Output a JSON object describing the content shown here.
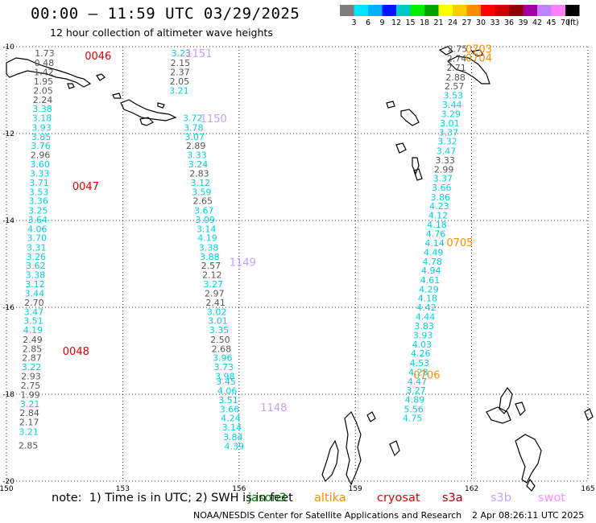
{
  "title": "00:00 – 11:59 UTC 03/29/2025",
  "subtitle": "12 hour collection of altimeter wave heights",
  "note": "note:  1) Time is in UTC; 2) SWH is in feet",
  "credit": "NOAA/NESDIS Center for Satellite Applications and Research",
  "generated": "2 Apr 08:26:11 UTC 2025",
  "colorbar": {
    "unit_label": "(ft)",
    "stops": [
      {
        "label": "3",
        "color": "#7d7d7d"
      },
      {
        "label": "6",
        "color": "#00e5ff"
      },
      {
        "label": "9",
        "color": "#00b2ff"
      },
      {
        "label": "12",
        "color": "#0014ff"
      },
      {
        "label": "15",
        "color": "#00c8c8"
      },
      {
        "label": "18",
        "color": "#00ee00"
      },
      {
        "label": "21",
        "color": "#00a000"
      },
      {
        "label": "24",
        "color": "#ffff00"
      },
      {
        "label": "27",
        "color": "#ffcc00"
      },
      {
        "label": "30",
        "color": "#ff8c00"
      },
      {
        "label": "33",
        "color": "#ff0000"
      },
      {
        "label": "36",
        "color": "#d00000"
      },
      {
        "label": "39",
        "color": "#900000"
      },
      {
        "label": "42",
        "color": "#a000a0"
      },
      {
        "label": "45",
        "color": "#c080ff"
      },
      {
        "label": "70",
        "color": "#ff80ff"
      },
      {
        "label": "",
        "color": "#000000"
      }
    ]
  },
  "satellites": [
    {
      "name": "jason3",
      "color": "#008000"
    },
    {
      "name": "altika",
      "color": "#ff8c00"
    },
    {
      "name": "cryosat",
      "color": "#e00000"
    },
    {
      "name": "s3a",
      "color": "#a00000"
    },
    {
      "name": "s3b",
      "color": "#c4a0ff"
    },
    {
      "name": "swot",
      "color": "#ff90ff"
    }
  ],
  "map": {
    "lon_range": [
      150,
      165
    ],
    "lat_range": [
      -20,
      -10
    ],
    "lon_ticks": [
      150,
      153,
      156,
      159,
      162,
      165
    ],
    "lat_ticks": [
      -10,
      -12,
      -14,
      -16,
      -18,
      -20
    ],
    "lon_tick_labels": [
      "150",
      "153",
      "156",
      "159",
      "162",
      "165"
    ],
    "lat_tick_labels": [
      "-10",
      "-12",
      "-14",
      "-16",
      "-18",
      "-20"
    ],
    "grid": true,
    "gray_color": "#555555",
    "cyan_color": "#00d0e0"
  },
  "track_labels": [
    {
      "text": "0046",
      "color": "#e00000",
      "lon": 152.02,
      "lat": -10.2
    },
    {
      "text": "0047",
      "color": "#e00000",
      "lon": 151.7,
      "lat": -13.2
    },
    {
      "text": "0048",
      "color": "#e00000",
      "lon": 151.45,
      "lat": -17.0
    },
    {
      "text": "1151",
      "color": "#c4a0ff",
      "lon": 154.62,
      "lat": -10.15
    },
    {
      "text": "1150",
      "color": "#c4a0ff",
      "lon": 155.0,
      "lat": -11.65
    },
    {
      "text": "1149",
      "color": "#c4a0ff",
      "lon": 155.75,
      "lat": -14.95
    },
    {
      "text": "1148",
      "color": "#c4a0ff",
      "lon": 156.55,
      "lat": -18.3
    },
    {
      "text": "0703",
      "color": "#ff8c00",
      "lon": 161.84,
      "lat": -10.05
    },
    {
      "text": "0704",
      "color": "#ff8c00",
      "lon": 161.84,
      "lat": -10.25
    },
    {
      "text": "0705",
      "color": "#ff8c00",
      "lon": 161.35,
      "lat": -14.5
    },
    {
      "text": "0706",
      "color": "#ff8c00",
      "lon": 160.5,
      "lat": -17.55
    }
  ],
  "tracks": [
    {
      "id": "0046-0048",
      "points": [
        {
          "lon": 150.73,
          "lat": -10.15,
          "v": "1.73",
          "c": "g"
        },
        {
          "lon": 150.72,
          "lat": -10.37,
          "v": "0.48",
          "c": "g"
        },
        {
          "lon": 150.71,
          "lat": -10.58,
          "v": "1.42",
          "c": "g"
        },
        {
          "lon": 150.7,
          "lat": -10.8,
          "v": "1.95",
          "c": "g"
        },
        {
          "lon": 150.69,
          "lat": -11.01,
          "v": "2.05",
          "c": "g"
        },
        {
          "lon": 150.68,
          "lat": -11.22,
          "v": "2.24",
          "c": "g"
        },
        {
          "lon": 150.67,
          "lat": -11.43,
          "v": "3.38",
          "c": "c"
        },
        {
          "lon": 150.66,
          "lat": -11.64,
          "v": "3.18",
          "c": "c"
        },
        {
          "lon": 150.65,
          "lat": -11.86,
          "v": "3.93",
          "c": "c"
        },
        {
          "lon": 150.64,
          "lat": -12.07,
          "v": "3.85",
          "c": "c"
        },
        {
          "lon": 150.63,
          "lat": -12.28,
          "v": "3.76",
          "c": "c"
        },
        {
          "lon": 150.62,
          "lat": -12.49,
          "v": "2.96",
          "c": "g"
        },
        {
          "lon": 150.61,
          "lat": -12.7,
          "v": "3.60",
          "c": "c"
        },
        {
          "lon": 150.6,
          "lat": -12.92,
          "v": "3.33",
          "c": "c"
        },
        {
          "lon": 150.59,
          "lat": -13.13,
          "v": "3.71",
          "c": "c"
        },
        {
          "lon": 150.58,
          "lat": -13.34,
          "v": "3.53",
          "c": "c"
        },
        {
          "lon": 150.57,
          "lat": -13.55,
          "v": "3.36",
          "c": "c"
        },
        {
          "lon": 150.56,
          "lat": -13.77,
          "v": "3.25",
          "c": "c"
        },
        {
          "lon": 150.55,
          "lat": -13.98,
          "v": "3.64",
          "c": "c"
        },
        {
          "lon": 150.54,
          "lat": -14.19,
          "v": "4.06",
          "c": "c"
        },
        {
          "lon": 150.53,
          "lat": -14.4,
          "v": "3.70",
          "c": "c"
        },
        {
          "lon": 150.52,
          "lat": -14.62,
          "v": "3.31",
          "c": "c"
        },
        {
          "lon": 150.51,
          "lat": -14.83,
          "v": "3.26",
          "c": "c"
        },
        {
          "lon": 150.5,
          "lat": -15.04,
          "v": "3.62",
          "c": "c"
        },
        {
          "lon": 150.49,
          "lat": -15.25,
          "v": "3.38",
          "c": "c"
        },
        {
          "lon": 150.48,
          "lat": -15.46,
          "v": "3.12",
          "c": "c"
        },
        {
          "lon": 150.47,
          "lat": -15.68,
          "v": "3.44",
          "c": "c"
        },
        {
          "lon": 150.46,
          "lat": -15.89,
          "v": "2.70",
          "c": "g"
        },
        {
          "lon": 150.45,
          "lat": -16.1,
          "v": "3.47",
          "c": "c"
        },
        {
          "lon": 150.44,
          "lat": -16.31,
          "v": "3.51",
          "c": "c"
        },
        {
          "lon": 150.43,
          "lat": -16.52,
          "v": "4.19",
          "c": "c"
        },
        {
          "lon": 150.42,
          "lat": -16.74,
          "v": "2.49",
          "c": "g"
        },
        {
          "lon": 150.41,
          "lat": -16.95,
          "v": "2.85",
          "c": "g"
        },
        {
          "lon": 150.4,
          "lat": -17.16,
          "v": "2.87",
          "c": "g"
        },
        {
          "lon": 150.39,
          "lat": -17.37,
          "v": "3.22",
          "c": "c"
        },
        {
          "lon": 150.38,
          "lat": -17.58,
          "v": "2.93",
          "c": "g"
        },
        {
          "lon": 150.37,
          "lat": -17.8,
          "v": "2.75",
          "c": "g"
        },
        {
          "lon": 150.36,
          "lat": -18.01,
          "v": "1.99",
          "c": "g"
        },
        {
          "lon": 150.35,
          "lat": -18.22,
          "v": "3.21",
          "c": "c"
        },
        {
          "lon": 150.34,
          "lat": -18.43,
          "v": "2.84",
          "c": "g"
        },
        {
          "lon": 150.33,
          "lat": -18.64,
          "v": "2.17",
          "c": "g"
        },
        {
          "lon": 150.32,
          "lat": -18.86,
          "v": "3.21",
          "c": "c"
        },
        {
          "lon": 150.31,
          "lat": -19.18,
          "v": "2.85",
          "c": "g"
        }
      ]
    },
    {
      "id": "1151-1148",
      "points": [
        {
          "lon": 154.25,
          "lat": -10.15,
          "v": "3.23",
          "c": "c"
        },
        {
          "lon": 154.23,
          "lat": -10.37,
          "v": "2.15",
          "c": "g"
        },
        {
          "lon": 154.22,
          "lat": -10.58,
          "v": "2.37",
          "c": "g"
        },
        {
          "lon": 154.21,
          "lat": -10.8,
          "v": "2.05",
          "c": "g"
        },
        {
          "lon": 154.2,
          "lat": -11.01,
          "v": "3.21",
          "c": "c"
        },
        {
          "lon": 154.55,
          "lat": -11.64,
          "v": "3.72",
          "c": "c"
        },
        {
          "lon": 154.57,
          "lat": -11.86,
          "v": "3.78",
          "c": "c"
        },
        {
          "lon": 154.6,
          "lat": -12.07,
          "v": "3.07",
          "c": "c"
        },
        {
          "lon": 154.63,
          "lat": -12.28,
          "v": "2.89",
          "c": "g"
        },
        {
          "lon": 154.66,
          "lat": -12.49,
          "v": "3.33",
          "c": "c"
        },
        {
          "lon": 154.69,
          "lat": -12.7,
          "v": "3.24",
          "c": "c"
        },
        {
          "lon": 154.72,
          "lat": -12.92,
          "v": "2.83",
          "c": "g"
        },
        {
          "lon": 154.75,
          "lat": -13.13,
          "v": "3.12",
          "c": "c"
        },
        {
          "lon": 154.78,
          "lat": -13.34,
          "v": "3.59",
          "c": "c"
        },
        {
          "lon": 154.81,
          "lat": -13.55,
          "v": "2.65",
          "c": "g"
        },
        {
          "lon": 154.84,
          "lat": -13.77,
          "v": "3.67",
          "c": "c"
        },
        {
          "lon": 154.87,
          "lat": -13.98,
          "v": "3.09",
          "c": "c"
        },
        {
          "lon": 154.9,
          "lat": -14.19,
          "v": "3.14",
          "c": "c"
        },
        {
          "lon": 154.93,
          "lat": -14.4,
          "v": "4.19",
          "c": "c"
        },
        {
          "lon": 154.96,
          "lat": -14.62,
          "v": "3.38",
          "c": "c"
        },
        {
          "lon": 154.99,
          "lat": -14.83,
          "v": "3.88",
          "c": "c"
        },
        {
          "lon": 155.02,
          "lat": -15.04,
          "v": "2.57",
          "c": "g"
        },
        {
          "lon": 155.05,
          "lat": -15.25,
          "v": "2.12",
          "c": "g"
        },
        {
          "lon": 155.08,
          "lat": -15.46,
          "v": "3.27",
          "c": "c"
        },
        {
          "lon": 155.11,
          "lat": -15.68,
          "v": "2.97",
          "c": "g"
        },
        {
          "lon": 155.14,
          "lat": -15.89,
          "v": "2.41",
          "c": "g"
        },
        {
          "lon": 155.17,
          "lat": -16.1,
          "v": "3.02",
          "c": "c"
        },
        {
          "lon": 155.2,
          "lat": -16.31,
          "v": "3.01",
          "c": "c"
        },
        {
          "lon": 155.23,
          "lat": -16.52,
          "v": "3.35",
          "c": "c"
        },
        {
          "lon": 155.26,
          "lat": -16.74,
          "v": "2.50",
          "c": "g"
        },
        {
          "lon": 155.29,
          "lat": -16.95,
          "v": "2.68",
          "c": "g"
        },
        {
          "lon": 155.32,
          "lat": -17.16,
          "v": "3.96",
          "c": "c"
        },
        {
          "lon": 155.35,
          "lat": -17.37,
          "v": "3.73",
          "c": "c"
        },
        {
          "lon": 155.38,
          "lat": -17.58,
          "v": "3.98",
          "c": "c"
        },
        {
          "lon": 155.41,
          "lat": -17.7,
          "v": "3.45",
          "c": "c"
        },
        {
          "lon": 155.44,
          "lat": -17.92,
          "v": "4.06",
          "c": "c"
        },
        {
          "lon": 155.47,
          "lat": -18.13,
          "v": "3.51",
          "c": "c"
        },
        {
          "lon": 155.5,
          "lat": -18.34,
          "v": "3.66",
          "c": "c"
        },
        {
          "lon": 155.53,
          "lat": -18.55,
          "v": "4.24",
          "c": "c"
        },
        {
          "lon": 155.56,
          "lat": -18.76,
          "v": "3.14",
          "c": "c"
        },
        {
          "lon": 155.59,
          "lat": -18.98,
          "v": "3.84",
          "c": "c"
        },
        {
          "lon": 155.62,
          "lat": -19.19,
          "v": "4.39",
          "c": "c"
        }
      ]
    },
    {
      "id": "0703-0706",
      "points": [
        {
          "lon": 161.38,
          "lat": -10.05,
          "v": "2.75",
          "c": "g"
        },
        {
          "lon": 161.36,
          "lat": -10.27,
          "v": "2.74",
          "c": "g"
        },
        {
          "lon": 161.35,
          "lat": -10.48,
          "v": "2.71",
          "c": "g"
        },
        {
          "lon": 161.33,
          "lat": -10.7,
          "v": "2.88",
          "c": "g"
        },
        {
          "lon": 161.3,
          "lat": -10.91,
          "v": "2.57",
          "c": "g"
        },
        {
          "lon": 161.27,
          "lat": -11.12,
          "v": "3.53",
          "c": "c"
        },
        {
          "lon": 161.24,
          "lat": -11.33,
          "v": "3.44",
          "c": "c"
        },
        {
          "lon": 161.21,
          "lat": -11.55,
          "v": "3.29",
          "c": "c"
        },
        {
          "lon": 161.18,
          "lat": -11.76,
          "v": "3.01",
          "c": "c"
        },
        {
          "lon": 161.15,
          "lat": -11.97,
          "v": "3.37",
          "c": "c"
        },
        {
          "lon": 161.12,
          "lat": -12.18,
          "v": "3.32",
          "c": "c"
        },
        {
          "lon": 161.09,
          "lat": -12.4,
          "v": "3.47",
          "c": "c"
        },
        {
          "lon": 161.06,
          "lat": -12.61,
          "v": "3.33",
          "c": "g"
        },
        {
          "lon": 161.03,
          "lat": -12.82,
          "v": "2.99",
          "c": "g"
        },
        {
          "lon": 161.0,
          "lat": -13.03,
          "v": "3.37",
          "c": "c"
        },
        {
          "lon": 160.97,
          "lat": -13.24,
          "v": "3.66",
          "c": "c"
        },
        {
          "lon": 160.94,
          "lat": -13.46,
          "v": "3.86",
          "c": "c"
        },
        {
          "lon": 160.91,
          "lat": -13.67,
          "v": "4.23",
          "c": "c"
        },
        {
          "lon": 160.88,
          "lat": -13.88,
          "v": "4.12",
          "c": "c"
        },
        {
          "lon": 160.85,
          "lat": -14.09,
          "v": "4.18",
          "c": "c"
        },
        {
          "lon": 160.82,
          "lat": -14.31,
          "v": "4.76",
          "c": "c"
        },
        {
          "lon": 160.79,
          "lat": -14.52,
          "v": "4.14",
          "c": "c"
        },
        {
          "lon": 160.76,
          "lat": -14.73,
          "v": "4.49",
          "c": "c"
        },
        {
          "lon": 160.73,
          "lat": -14.94,
          "v": "4.78",
          "c": "c"
        },
        {
          "lon": 160.7,
          "lat": -15.15,
          "v": "4.94",
          "c": "c"
        },
        {
          "lon": 160.67,
          "lat": -15.37,
          "v": "4.61",
          "c": "c"
        },
        {
          "lon": 160.64,
          "lat": -15.58,
          "v": "4.29",
          "c": "c"
        },
        {
          "lon": 160.61,
          "lat": -15.79,
          "v": "4.18",
          "c": "c"
        },
        {
          "lon": 160.58,
          "lat": -16.0,
          "v": "4.42",
          "c": "c"
        },
        {
          "lon": 160.55,
          "lat": -16.21,
          "v": "4.44",
          "c": "c"
        },
        {
          "lon": 160.52,
          "lat": -16.43,
          "v": "3.83",
          "c": "c"
        },
        {
          "lon": 160.49,
          "lat": -16.64,
          "v": "3.93",
          "c": "c"
        },
        {
          "lon": 160.46,
          "lat": -16.85,
          "v": "4.03",
          "c": "c"
        },
        {
          "lon": 160.43,
          "lat": -17.06,
          "v": "4.26",
          "c": "c"
        },
        {
          "lon": 160.4,
          "lat": -17.28,
          "v": "4.53",
          "c": "c"
        },
        {
          "lon": 160.37,
          "lat": -17.49,
          "v": "4.28",
          "c": "c"
        },
        {
          "lon": 160.34,
          "lat": -17.7,
          "v": "4.47",
          "c": "c"
        },
        {
          "lon": 160.31,
          "lat": -17.91,
          "v": "3.27",
          "c": "c"
        },
        {
          "lon": 160.28,
          "lat": -18.12,
          "v": "4.89",
          "c": "c"
        },
        {
          "lon": 160.25,
          "lat": -18.34,
          "v": "5.56",
          "c": "c"
        },
        {
          "lon": 160.22,
          "lat": -18.55,
          "v": "4.75",
          "c": "c"
        }
      ]
    }
  ]
}
